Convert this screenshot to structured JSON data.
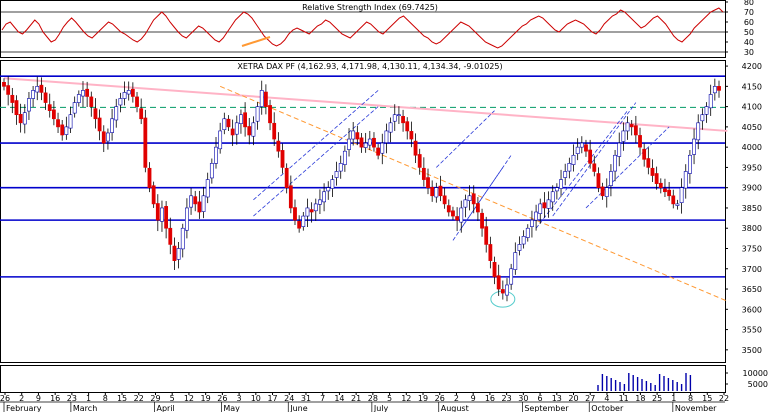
{
  "chart_data": [
    {
      "type": "line",
      "title": "Relative Strength Index (69.7425)",
      "yticks": [
        80,
        70,
        60,
        50,
        40,
        30
      ],
      "ylim": [
        25,
        82
      ],
      "colors": {
        "line": "#cc0000",
        "trend": "#ff9933",
        "guide": "#000000"
      },
      "series": [
        {
          "values": [
            52,
            58,
            60,
            55,
            50,
            48,
            52,
            57,
            62,
            58,
            50,
            45,
            40,
            42,
            48,
            55,
            60,
            64,
            60,
            55,
            50,
            46,
            44,
            48,
            52,
            56,
            60,
            58,
            54,
            50,
            48,
            45,
            42,
            40,
            43,
            48,
            55,
            62,
            66,
            70,
            66,
            60,
            55,
            50,
            46,
            44,
            48,
            52,
            56,
            54,
            50,
            46,
            42,
            40,
            44,
            50,
            56,
            62,
            66,
            70,
            68,
            64,
            58,
            52,
            46,
            42,
            38,
            36,
            38,
            42,
            48,
            52,
            54,
            52,
            50,
            48,
            52,
            56,
            58,
            62,
            60,
            56,
            52,
            48,
            46,
            44,
            48,
            52,
            56,
            60,
            58,
            54,
            50,
            48,
            52,
            56,
            60,
            64,
            66,
            62,
            58,
            54,
            50,
            46,
            44,
            40,
            38,
            40,
            44,
            48,
            52,
            56,
            60,
            58,
            56,
            52,
            48,
            44,
            40,
            38,
            36,
            34,
            36,
            40,
            44,
            48,
            52,
            56,
            58,
            62,
            64,
            66,
            64,
            60,
            56,
            52,
            50,
            54,
            58,
            60,
            62,
            60,
            58,
            54,
            50,
            48,
            52,
            58,
            62,
            66,
            68,
            72,
            70,
            66,
            62,
            58,
            54,
            56,
            60,
            64,
            66,
            62,
            58,
            52,
            46,
            42,
            40,
            44,
            48,
            54,
            58,
            62,
            66,
            70,
            72,
            74,
            70
          ]
        }
      ]
    },
    {
      "type": "candlestick",
      "title": "XETRA DAX PF (4,162.93, 4,171.98, 4,130.11, 4,134.34, -9.01025)",
      "yticks": [
        4200,
        4150,
        4100,
        4050,
        4000,
        3950,
        3900,
        3850,
        3800,
        3750,
        3700,
        3650,
        3600,
        3550,
        3500
      ],
      "ylim": [
        3470,
        4215
      ],
      "close": [
        4150,
        4130,
        4110,
        4080,
        4060,
        4085,
        4120,
        4140,
        4150,
        4135,
        4110,
        4090,
        4070,
        4050,
        4030,
        4050,
        4080,
        4110,
        4130,
        4140,
        4125,
        4100,
        4070,
        4040,
        4010,
        4035,
        4070,
        4100,
        4120,
        4135,
        4140,
        4125,
        4100,
        4070,
        3950,
        3900,
        3860,
        3820,
        3850,
        3800,
        3760,
        3720,
        3750,
        3800,
        3850,
        3880,
        3860,
        3840,
        3880,
        3920,
        3960,
        4000,
        4040,
        4070,
        4050,
        4030,
        4060,
        4080,
        4050,
        4030,
        4060,
        4100,
        4140,
        4100,
        4060,
        4020,
        3990,
        3950,
        3900,
        3850,
        3820,
        3800,
        3830,
        3850,
        3840,
        3860,
        3870,
        3890,
        3900,
        3920,
        3940,
        3960,
        3990,
        4020,
        4040,
        4020,
        4000,
        4010,
        4020,
        4000,
        3980,
        4010,
        4040,
        4060,
        4080,
        4080,
        4060,
        4040,
        4020,
        3980,
        3950,
        3920,
        3900,
        3880,
        3900,
        3880,
        3860,
        3840,
        3830,
        3820,
        3850,
        3870,
        3880,
        3860,
        3840,
        3800,
        3760,
        3720,
        3680,
        3650,
        3640,
        3660,
        3700,
        3740,
        3760,
        3780,
        3800,
        3820,
        3840,
        3860,
        3850,
        3870,
        3890,
        3900,
        3920,
        3940,
        3960,
        3980,
        4000,
        4010,
        3990,
        3960,
        3940,
        3900,
        3880,
        3900,
        3940,
        3980,
        4010,
        4040,
        4060,
        4050,
        4030,
        4000,
        3970,
        3950,
        3930,
        3910,
        3900,
        3890,
        3880,
        3860,
        3860,
        3900,
        3940,
        3980,
        4020,
        4060,
        4080,
        4100,
        4130,
        4150,
        4140
      ],
      "horizontal_levels": [
        4175,
        4010,
        3900,
        3820,
        3680
      ],
      "dashed_level": 4098,
      "trendlines": [
        {
          "name": "",
          "style": "pink",
          "from": [
            0,
            4170
          ],
          "to": [
            174,
            4040
          ]
        },
        {
          "name": "",
          "style": "orange-dashed",
          "from": [
            52,
            4150
          ],
          "to": [
            174,
            3620
          ]
        }
      ],
      "x_tick_labels": [
        "26",
        "2",
        "9",
        "16",
        "23",
        "1",
        "8",
        "15",
        "22",
        "29",
        "5",
        "12",
        "19",
        "26",
        "3",
        "10",
        "17",
        "24",
        "31",
        "7",
        "14",
        "21",
        "28",
        "5",
        "12",
        "19",
        "26",
        "2",
        "9",
        "16",
        "23",
        "30",
        "6",
        "13",
        "20",
        "27",
        "4",
        "11",
        "18",
        "25",
        "1",
        "8",
        "15",
        "22"
      ],
      "month_labels": [
        "February",
        "March",
        "April",
        "May",
        "June",
        "July",
        "August",
        "September",
        "October",
        "November"
      ]
    },
    {
      "type": "bar",
      "title": "",
      "yticks": [
        "10000",
        "5000"
      ],
      "ylim": [
        0,
        12000
      ]
    }
  ]
}
